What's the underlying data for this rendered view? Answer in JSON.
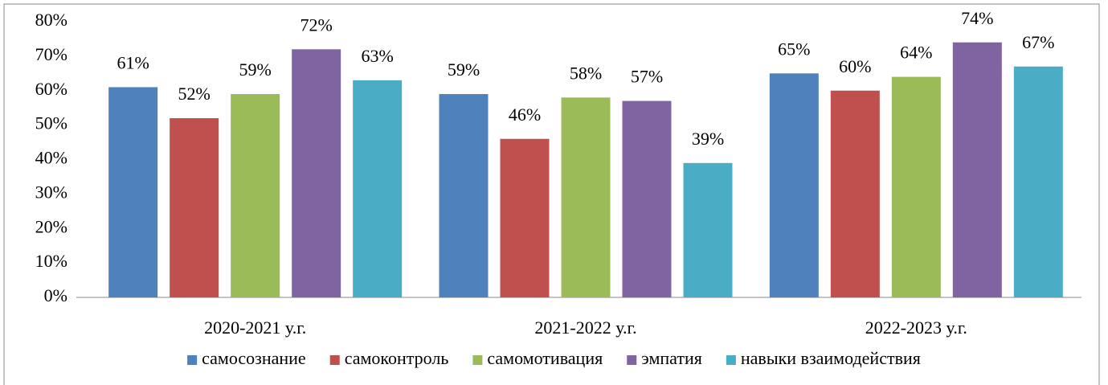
{
  "chart_data": {
    "type": "bar",
    "categories": [
      "2020-2021 у.г.",
      "2021-2022 у.г.",
      "2022-2023 у.г."
    ],
    "series": [
      {
        "name": "самосознание",
        "color": "#4f81bd",
        "values": [
          61,
          59,
          65
        ],
        "value_labels": [
          "61%",
          "59%",
          "65%"
        ]
      },
      {
        "name": "самоконтроль",
        "color": "#c0504d",
        "values": [
          52,
          46,
          60
        ],
        "value_labels": [
          "52%",
          "46%",
          "60%"
        ]
      },
      {
        "name": "самомотивация",
        "color": "#9bbb59",
        "values": [
          59,
          58,
          64
        ],
        "value_labels": [
          "59%",
          "58%",
          "64%"
        ]
      },
      {
        "name": "эмпатия",
        "color": "#8064a2",
        "values": [
          72,
          57,
          74
        ],
        "value_labels": [
          "72%",
          "57%",
          "74%"
        ]
      },
      {
        "name": "навыки  взаимодействия",
        "color": "#4bacc6",
        "values": [
          63,
          39,
          67
        ],
        "value_labels": [
          "63%",
          "39%",
          "67%"
        ]
      }
    ],
    "ylim": [
      0,
      80
    ],
    "yticks": [
      {
        "value": 0,
        "label": "0%"
      },
      {
        "value": 10,
        "label": "10%"
      },
      {
        "value": 20,
        "label": "20%"
      },
      {
        "value": 30,
        "label": "30%"
      },
      {
        "value": 40,
        "label": "40%"
      },
      {
        "value": 50,
        "label": "50%"
      },
      {
        "value": 60,
        "label": "60%"
      },
      {
        "value": 70,
        "label": "70%"
      },
      {
        "value": 80,
        "label": "80%"
      }
    ],
    "legend": "bottom"
  }
}
